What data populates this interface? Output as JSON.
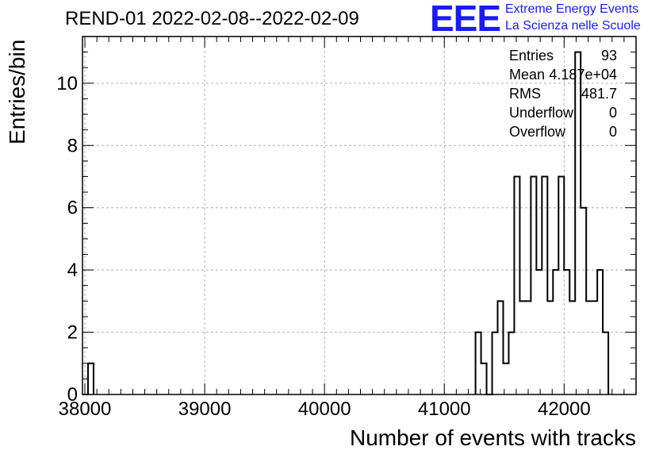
{
  "title": "REND-01 2022-02-08--2022-02-09",
  "logo": {
    "mark": "EEE",
    "line1": "Extreme Energy Events",
    "line2": "La Scienza nelle Scuole",
    "color": "#1a1aff"
  },
  "stats": [
    {
      "label": "Entries",
      "value": "93"
    },
    {
      "label": "Mean",
      "value": "4.187e+04"
    },
    {
      "label": "RMS",
      "value": "481.7"
    },
    {
      "label": "Underflow",
      "value": "0"
    },
    {
      "label": "Overflow",
      "value": "0"
    }
  ],
  "chart_data": {
    "type": "bar",
    "histogram": true,
    "title": "REND-01 2022-02-08--2022-02-09",
    "xlabel": "Number of events with tracks",
    "ylabel": "Entries/bin",
    "xlim": [
      37980,
      42600
    ],
    "ylim": [
      0,
      11.5
    ],
    "bin_width": 46.2,
    "grid": true,
    "xticks": [
      38000,
      39000,
      40000,
      41000,
      42000
    ],
    "xtick_labels": [
      "38000",
      "39000",
      "40000",
      "41000",
      "42000"
    ],
    "yticks": [
      0,
      2,
      4,
      6,
      8,
      10
    ],
    "ytick_labels": [
      "0",
      "2",
      "4",
      "6",
      "8",
      "10"
    ],
    "bins": [
      {
        "x": 37980.0,
        "count": 0
      },
      {
        "x": 38026.2,
        "count": 1
      },
      {
        "x": 41260.2,
        "count": 2
      },
      {
        "x": 41306.4,
        "count": 1
      },
      {
        "x": 41352.6,
        "count": 0
      },
      {
        "x": 41398.8,
        "count": 2
      },
      {
        "x": 41445.0,
        "count": 3
      },
      {
        "x": 41491.2,
        "count": 1
      },
      {
        "x": 41537.4,
        "count": 2
      },
      {
        "x": 41583.6,
        "count": 7
      },
      {
        "x": 41629.8,
        "count": 3
      },
      {
        "x": 41676.0,
        "count": 3
      },
      {
        "x": 41722.2,
        "count": 7
      },
      {
        "x": 41768.4,
        "count": 4
      },
      {
        "x": 41814.6,
        "count": 7
      },
      {
        "x": 41860.8,
        "count": 3
      },
      {
        "x": 41907.0,
        "count": 4
      },
      {
        "x": 41953.2,
        "count": 7
      },
      {
        "x": 41999.4,
        "count": 4
      },
      {
        "x": 42045.6,
        "count": 3
      },
      {
        "x": 42091.8,
        "count": 11
      },
      {
        "x": 42138.0,
        "count": 6
      },
      {
        "x": 42184.2,
        "count": 3
      },
      {
        "x": 42230.4,
        "count": 3
      },
      {
        "x": 42276.6,
        "count": 4
      },
      {
        "x": 42322.8,
        "count": 2
      }
    ],
    "line_color": "#000000",
    "grid_color": "#b0b0b0"
  }
}
